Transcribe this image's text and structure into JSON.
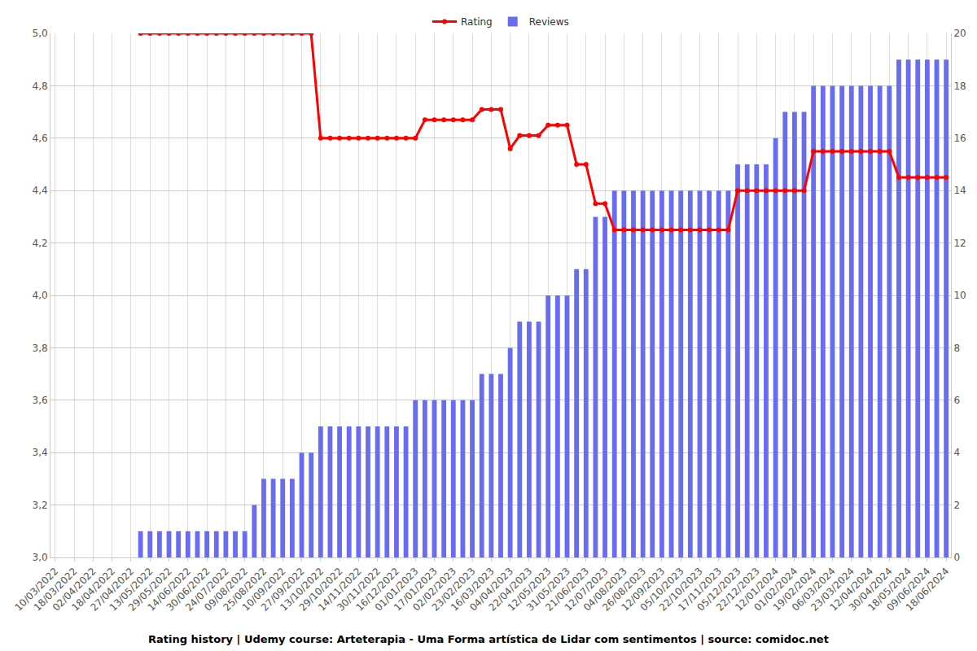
{
  "chart_data": {
    "type": "bar",
    "title": "Rating history | Udemy course: Arteterapia - Uma Forma artística de Lidar com sentimentos | source: comidoc.net",
    "categories": [
      "10/03/2022",
      null,
      "18/03/2022",
      null,
      "02/04/2022",
      null,
      "18/04/2022",
      null,
      "27/04/2022",
      null,
      "13/05/2022",
      null,
      "29/05/2022",
      null,
      "14/06/2022",
      null,
      "30/06/2022",
      null,
      "24/07/2022",
      null,
      "09/08/2022",
      null,
      "25/08/2022",
      null,
      "10/09/2022",
      null,
      "27/09/2022",
      null,
      "13/10/2022",
      null,
      "29/10/2022",
      null,
      "14/11/2022",
      null,
      "30/11/2022",
      null,
      "16/12/2022",
      null,
      "01/01/2023",
      null,
      "17/01/2023",
      null,
      "02/02/2023",
      null,
      "23/02/2023",
      null,
      "16/03/2023",
      null,
      "04/04/2023",
      null,
      "22/04/2023",
      null,
      "12/05/2023",
      null,
      "31/05/2023",
      null,
      "21/06/2023",
      null,
      "12/07/2023",
      null,
      "04/08/2023",
      null,
      "26/08/2023",
      null,
      "12/09/2023",
      null,
      "05/10/2023",
      null,
      "22/10/2023",
      null,
      "17/11/2023",
      null,
      "05/12/2023",
      null,
      "22/12/2023",
      null,
      "12/01/2024",
      null,
      "01/02/2024",
      null,
      "19/02/2024",
      null,
      "06/03/2024",
      null,
      "23/03/2024",
      null,
      "12/04/2024",
      null,
      "30/04/2024",
      null,
      "18/05/2024",
      null,
      "09/06/2024",
      null,
      "18/06/2024"
    ],
    "series": [
      {
        "name": "Rating",
        "type": "line",
        "color": "#ff0000",
        "marker": "circle",
        "values": [
          null,
          null,
          null,
          null,
          null,
          null,
          null,
          null,
          null,
          5,
          5,
          5,
          5,
          5,
          5,
          5,
          5,
          5,
          5,
          5,
          5,
          5,
          5,
          5,
          5,
          5,
          5,
          5,
          4.6,
          4.6,
          4.6,
          4.6,
          4.6,
          4.6,
          4.6,
          4.6,
          4.6,
          4.6,
          4.6,
          4.67,
          4.67,
          4.67,
          4.67,
          4.67,
          4.67,
          4.71,
          4.71,
          4.71,
          4.56,
          4.61,
          4.61,
          4.61,
          4.65,
          4.65,
          4.65,
          4.5,
          4.5,
          4.35,
          4.35,
          4.25,
          4.25,
          4.25,
          4.25,
          4.25,
          4.25,
          4.25,
          4.25,
          4.25,
          4.25,
          4.25,
          4.25,
          4.25,
          4.4,
          4.4,
          4.4,
          4.4,
          4.4,
          4.4,
          4.4,
          4.4,
          4.55,
          4.55,
          4.55,
          4.55,
          4.55,
          4.55,
          4.55,
          4.55,
          4.55,
          4.45,
          4.45,
          4.45,
          4.45,
          4.45,
          4.45
        ]
      },
      {
        "name": "Reviews",
        "type": "bar",
        "color": "#6a6cf0",
        "axis": "y2",
        "values": [
          null,
          null,
          null,
          null,
          null,
          null,
          null,
          null,
          null,
          1,
          1,
          1,
          1,
          1,
          1,
          1,
          1,
          1,
          1,
          1,
          1,
          2,
          3,
          3,
          3,
          3,
          4,
          4,
          5,
          5,
          5,
          5,
          5,
          5,
          5,
          5,
          5,
          5,
          6,
          6,
          6,
          6,
          6,
          6,
          6,
          7,
          7,
          7,
          8,
          9,
          9,
          9,
          10,
          10,
          10,
          11,
          11,
          13,
          13,
          14,
          14,
          14,
          14,
          14,
          14,
          14,
          14,
          14,
          14,
          14,
          14,
          14,
          15,
          15,
          15,
          15,
          16,
          17,
          17,
          17,
          18,
          18,
          18,
          18,
          18,
          18,
          18,
          18,
          18,
          19,
          19,
          19,
          19,
          19,
          19
        ]
      }
    ],
    "ylim": [
      3,
      5
    ],
    "yticks": [
      {
        "value": 3,
        "label": "3,0"
      },
      {
        "value": 3.2,
        "label": "3,2"
      },
      {
        "value": 3.4,
        "label": "3,4"
      },
      {
        "value": 3.6,
        "label": "3,6"
      },
      {
        "value": 3.8,
        "label": "3,8"
      },
      {
        "value": 4,
        "label": "4,0"
      },
      {
        "value": 4.2,
        "label": "4,2"
      },
      {
        "value": 4.4,
        "label": "4,4"
      },
      {
        "value": 4.6,
        "label": "4,6"
      },
      {
        "value": 4.8,
        "label": "4,8"
      },
      {
        "value": 5,
        "label": "5,0"
      }
    ],
    "y2lim": [
      0,
      20
    ],
    "y2ticks": [
      0,
      2,
      4,
      6,
      8,
      10,
      12,
      14,
      16,
      18,
      20
    ],
    "grid": true,
    "legend": "top"
  }
}
